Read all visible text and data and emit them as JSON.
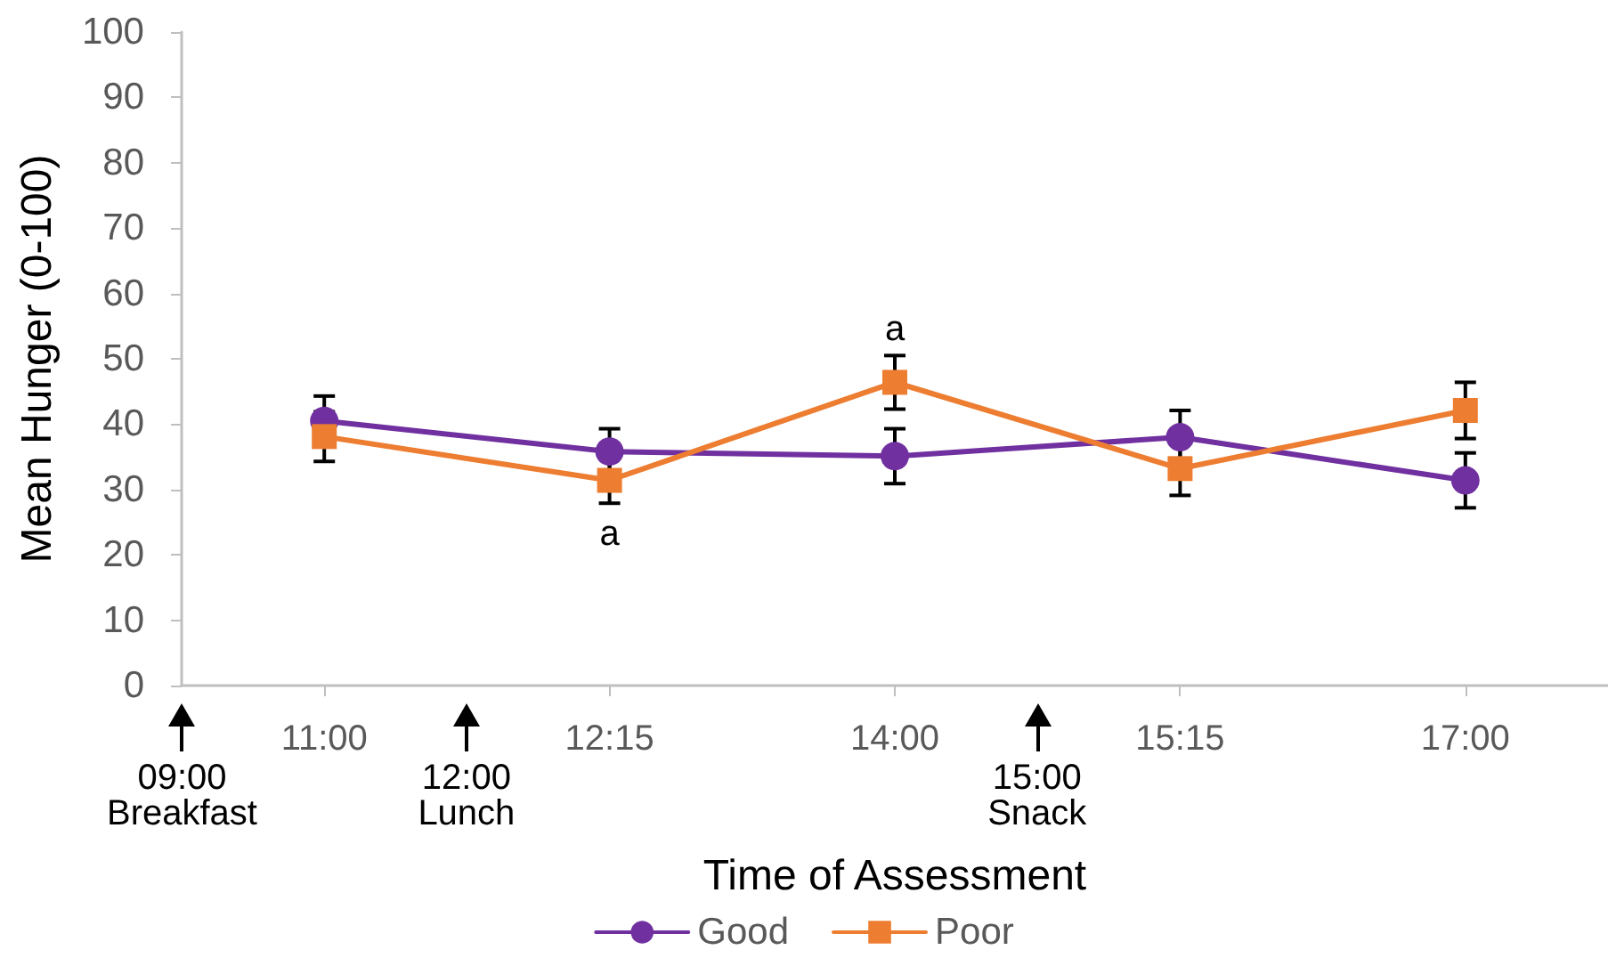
{
  "chart_data": {
    "type": "line",
    "categories": [
      "11:00",
      "12:15",
      "14:00",
      "15:15",
      "17:00"
    ],
    "series": [
      {
        "name": "Good",
        "color": "#7030a0",
        "marker": "circle",
        "values": [
          40.5,
          35.8,
          35.1,
          38.0,
          31.4
        ],
        "errors": [
          3.8,
          3.5,
          4.2,
          4.1,
          4.2
        ]
      },
      {
        "name": "Poor",
        "color": "#ed7d31",
        "marker": "square",
        "values": [
          38.1,
          31.4,
          46.4,
          33.2,
          42.1
        ],
        "errors": [
          3.8,
          3.5,
          4.1,
          4.1,
          4.3
        ]
      }
    ],
    "xlabel": "Time of Assessment",
    "ylabel": "Mean Hunger (0-100)",
    "ylim": [
      0,
      100
    ],
    "yticks": [
      0,
      10,
      20,
      30,
      40,
      50,
      60,
      70,
      80,
      90,
      100
    ],
    "legend": "bottom",
    "line_style": "solid",
    "annotations": [
      {
        "text": "a",
        "x": "12:15",
        "y": 31.4
      },
      {
        "text": "a",
        "x": "14:00",
        "y": 46.4
      },
      "09:00\nBreakfast",
      "12:00\nLunch",
      "15:00\nSnack"
    ]
  }
}
